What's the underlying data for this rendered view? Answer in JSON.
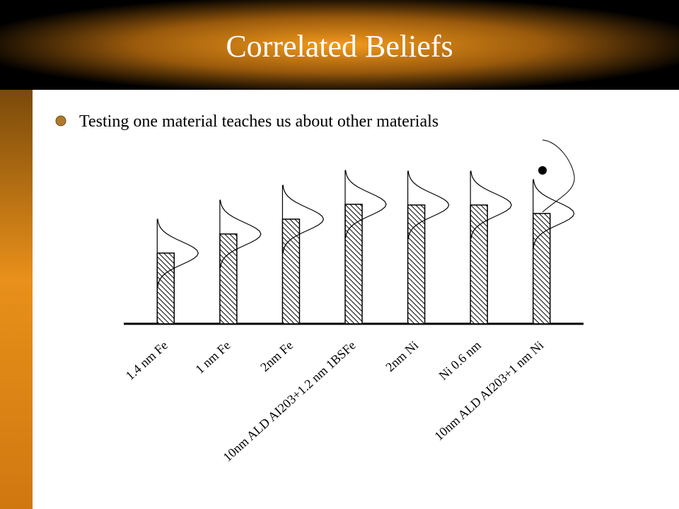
{
  "title": "Correlated Beliefs",
  "bullets": [
    "Testing one material teaches us about other materials"
  ],
  "chart_data": {
    "type": "bar",
    "categories": [
      "1.4 nm Fe",
      "1 nm Fe",
      "2nm Fe",
      "10nm ALD AI203+1.2 nm 1BSFe",
      "2nm Ni",
      "Ni 0.6 nm",
      "10nm ALD AI203+1 nm Ni"
    ],
    "values": [
      100,
      127,
      148,
      169,
      168,
      168,
      156
    ],
    "ylim": [
      0,
      250
    ],
    "color": "#000000"
  }
}
